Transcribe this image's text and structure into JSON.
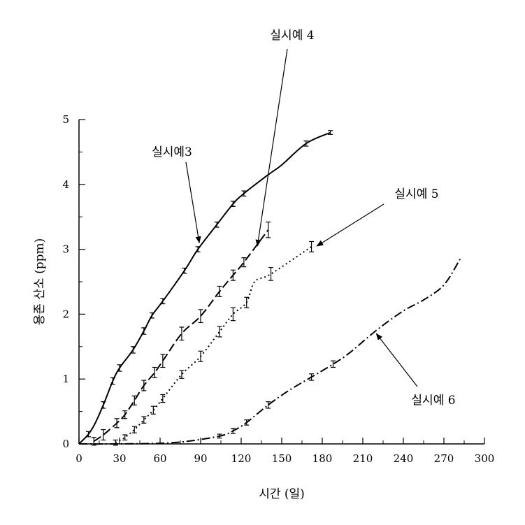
{
  "chart_data": {
    "type": "line",
    "title": "",
    "xlabel": "시간 (일)",
    "ylabel": "용존 산소 (ppm)",
    "xlim": [
      0,
      300
    ],
    "ylim": [
      0,
      5
    ],
    "xticks": [
      "0",
      "30",
      "60",
      "90",
      "120",
      "150",
      "180",
      "210",
      "240",
      "270",
      "300"
    ],
    "yticks": [
      "0",
      "1",
      "2",
      "3",
      "4",
      "5"
    ],
    "grid": false,
    "legend": "none",
    "series": [
      {
        "name": "실시예3",
        "style": "solid",
        "color": "#000000",
        "x": [
          0,
          7,
          12,
          18,
          25,
          30,
          40,
          48,
          54,
          62,
          78,
          88,
          102,
          114,
          122,
          140,
          150,
          168,
          186
        ],
        "y": [
          0,
          0.15,
          0.32,
          0.6,
          0.97,
          1.17,
          1.45,
          1.74,
          1.98,
          2.2,
          2.67,
          3.0,
          3.38,
          3.7,
          3.86,
          4.15,
          4.3,
          4.63,
          4.8
        ],
        "errorbar_x": [
          7,
          18,
          25,
          30,
          40,
          48,
          54,
          62,
          78,
          88,
          102,
          114,
          122,
          168,
          186
        ],
        "errorbar_y": [
          0.15,
          0.6,
          0.97,
          1.17,
          1.45,
          1.74,
          1.98,
          2.2,
          2.67,
          3.0,
          3.38,
          3.7,
          3.86,
          4.63,
          4.8
        ],
        "errorbar_err": [
          0.04,
          0.05,
          0.05,
          0.05,
          0.05,
          0.05,
          0.04,
          0.04,
          0.04,
          0.04,
          0.04,
          0.04,
          0.04,
          0.04,
          0.03
        ]
      },
      {
        "name": "실시예 4",
        "style": "dashed",
        "color": "#000000",
        "x": [
          11,
          18,
          28,
          34,
          41,
          48,
          56,
          62,
          76,
          90,
          104,
          114,
          122,
          140
        ],
        "y": [
          0.04,
          0.14,
          0.32,
          0.45,
          0.67,
          0.9,
          1.1,
          1.28,
          1.7,
          1.97,
          2.35,
          2.6,
          2.8,
          3.3
        ],
        "errorbar_x": [
          11,
          18,
          28,
          34,
          41,
          48,
          56,
          62,
          76,
          90,
          104,
          114,
          122,
          140
        ],
        "errorbar_y": [
          0.04,
          0.14,
          0.32,
          0.45,
          0.67,
          0.9,
          1.1,
          1.28,
          1.7,
          1.97,
          2.35,
          2.6,
          2.8,
          3.3
        ],
        "errorbar_err": [
          0.06,
          0.08,
          0.07,
          0.06,
          0.07,
          0.08,
          0.08,
          0.1,
          0.1,
          0.1,
          0.08,
          0.08,
          0.07,
          0.12
        ]
      },
      {
        "name": "실시예 5",
        "style": "dotted",
        "color": "#000000",
        "x": [
          27,
          34,
          41,
          48,
          55,
          62,
          76,
          90,
          104,
          114,
          124,
          130,
          142,
          172
        ],
        "y": [
          0.02,
          0.1,
          0.22,
          0.37,
          0.52,
          0.7,
          1.07,
          1.35,
          1.73,
          2.0,
          2.18,
          2.5,
          2.62,
          3.04
        ],
        "errorbar_x": [
          27,
          34,
          41,
          48,
          55,
          62,
          76,
          90,
          104,
          114,
          124,
          142,
          172
        ],
        "errorbar_y": [
          0.02,
          0.1,
          0.22,
          0.37,
          0.52,
          0.7,
          1.07,
          1.35,
          1.73,
          2.0,
          2.18,
          2.62,
          3.04
        ],
        "errorbar_err": [
          0.04,
          0.04,
          0.05,
          0.05,
          0.06,
          0.06,
          0.06,
          0.08,
          0.08,
          0.1,
          0.08,
          0.1,
          0.08
        ]
      },
      {
        "name": "실시예 6",
        "style": "dashdot",
        "color": "#000000",
        "x": [
          0,
          30,
          60,
          80,
          104,
          114,
          124,
          140,
          155,
          172,
          188,
          200,
          220,
          240,
          255,
          270,
          282
        ],
        "y": [
          0,
          0,
          0.01,
          0.04,
          0.12,
          0.2,
          0.33,
          0.6,
          0.82,
          1.03,
          1.23,
          1.4,
          1.75,
          2.05,
          2.22,
          2.45,
          2.85
        ],
        "errorbar_x": [
          104,
          114,
          124,
          140,
          172,
          188
        ],
        "errorbar_y": [
          0.12,
          0.2,
          0.33,
          0.6,
          1.03,
          1.23
        ],
        "errorbar_err": [
          0.03,
          0.04,
          0.04,
          0.05,
          0.05,
          0.05
        ]
      }
    ],
    "annotations": [
      {
        "text": "실시예3",
        "series": 0,
        "target_x": 89,
        "target_y": 3.1
      },
      {
        "text": "실시예 4",
        "series": 1,
        "target_x": 132,
        "target_y": 3.05
      },
      {
        "text": "실시예  5",
        "series": 2,
        "target_x": 176,
        "target_y": 3.05
      },
      {
        "text": "실시예 6",
        "series": 3,
        "target_x": 220,
        "target_y": 1.7
      }
    ]
  }
}
